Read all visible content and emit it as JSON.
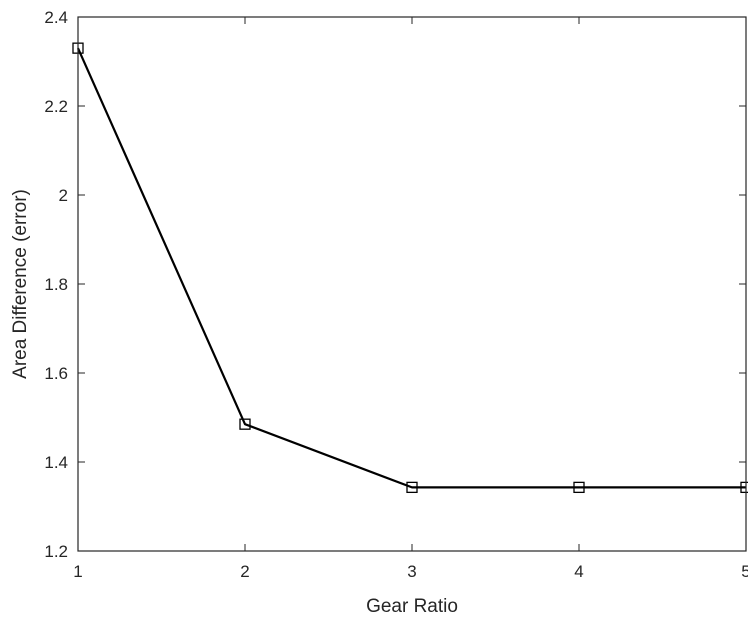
{
  "chart_data": {
    "type": "line",
    "title": "",
    "xlabel": "Gear Ratio",
    "ylabel": "Area Difference (error)",
    "xlim": [
      1,
      5
    ],
    "ylim": [
      1.2,
      2.4
    ],
    "x_ticks": [
      "1",
      "2",
      "3",
      "4",
      "5"
    ],
    "y_ticks": [
      "1.2",
      "1.4",
      "1.6",
      "1.8",
      "2",
      "2.2",
      "2.4"
    ],
    "grid": false,
    "marker": "square",
    "line_color": "#000000",
    "axis_color": "#262626",
    "series": [
      {
        "x": [
          1,
          2,
          3,
          4,
          5
        ],
        "values": [
          2.33,
          1.485,
          1.343,
          1.343,
          1.343
        ]
      }
    ]
  }
}
